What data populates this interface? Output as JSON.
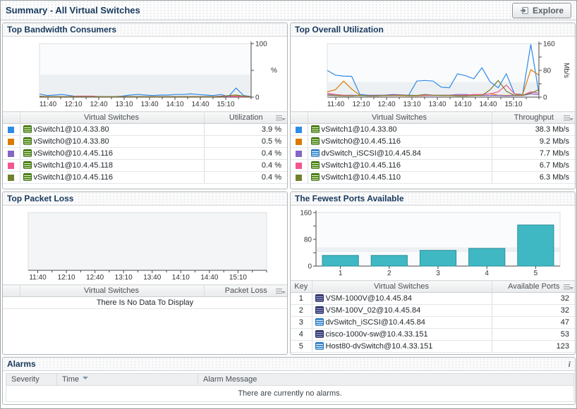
{
  "header": {
    "title": "Summary - All Virtual Switches",
    "explore_label": "Explore"
  },
  "panels": {
    "bandwidth": {
      "title": "Top Bandwidth Consumers",
      "columns": {
        "name": "Virtual Switches",
        "value": "Utilization"
      },
      "rows": [
        {
          "swatch": "#2E8BE6",
          "icon": "vswitch",
          "name": "vSwitch1@10.4.33.80",
          "value": "3.9 %"
        },
        {
          "swatch": "#DC7A00",
          "icon": "vswitch",
          "name": "vSwitch0@10.4.33.80",
          "value": "0.5 %"
        },
        {
          "swatch": "#8465C6",
          "icon": "vswitch",
          "name": "vSwitch0@10.4.45.116",
          "value": "0.4 %"
        },
        {
          "swatch": "#F4558F",
          "icon": "vswitch",
          "name": "vSwitch1@10.4.45.118",
          "value": "0.4 %"
        },
        {
          "swatch": "#72802D",
          "icon": "vswitch",
          "name": "vSwitch1@10.4.45.116",
          "value": "0.4 %"
        }
      ]
    },
    "utilization": {
      "title": "Top Overall Utilization",
      "columns": {
        "name": "Virtual Switches",
        "value": "Throughput"
      },
      "rows": [
        {
          "swatch": "#2E8BE6",
          "icon": "vswitch",
          "name": "vSwitch1@10.4.33.80",
          "value": "38.3 Mb/s"
        },
        {
          "swatch": "#DC7A00",
          "icon": "vswitch",
          "name": "vSwitch0@10.4.45.116",
          "value": "9.2 Mb/s"
        },
        {
          "swatch": "#8465C6",
          "icon": "dvswitch",
          "name": "dvSwitch_iSCSI@10.4.45.84",
          "value": "7.7 Mb/s"
        },
        {
          "swatch": "#F4558F",
          "icon": "vswitch",
          "name": "vSwitch1@10.4.45.116",
          "value": "6.7 Mb/s"
        },
        {
          "swatch": "#72802D",
          "icon": "vswitch",
          "name": "vSwitch1@10.4.45.110",
          "value": "6.3 Mb/s"
        }
      ]
    },
    "packetloss": {
      "title": "Top Packet Loss",
      "columns": {
        "name": "Virtual Switches",
        "value": "Packet Loss"
      },
      "empty_message": "There Is No Data To Display"
    },
    "ports": {
      "title": "The Fewest Ports Available",
      "columns": {
        "key": "Key",
        "name": "Virtual Switches",
        "value": "Available Ports"
      },
      "rows": [
        {
          "key": "1",
          "icon": "vsm",
          "name": "VSM-1000V@10.4.45.84",
          "value": "32"
        },
        {
          "key": "2",
          "icon": "vsm",
          "name": "VSM-100V_02@10.4.45.84",
          "value": "32"
        },
        {
          "key": "3",
          "icon": "dvswitch",
          "name": "dvSwitch_iSCSI@10.4.45.84",
          "value": "47"
        },
        {
          "key": "4",
          "icon": "vsm",
          "name": "cisco-1000v-sw@10.4.33.151",
          "value": "53"
        },
        {
          "key": "5",
          "icon": "dvswitch",
          "name": "Host80-dvSwitch@10.4.33.151",
          "value": "123"
        }
      ]
    }
  },
  "alarms": {
    "title": "Alarms",
    "info_glyph": "i",
    "columns": {
      "severity": "Severity",
      "time": "Time",
      "message": "Alarm Message"
    },
    "sort": "time-descending",
    "empty_message": "There are currently no alarms."
  },
  "chart_data": [
    {
      "name": "top-bandwidth-consumers",
      "type": "line",
      "unit": "%",
      "unit_rotated": false,
      "ylim": [
        0,
        100
      ],
      "yticks": [
        0,
        50,
        100
      ],
      "ytick_labels": [
        {
          "v": 0,
          "t": "0"
        },
        {
          "v": 100,
          "t": "100"
        }
      ],
      "axis_side": "right",
      "band": [
        0,
        42
      ],
      "x_labels": [
        "11:40",
        "12:10",
        "12:40",
        "13:10",
        "13:40",
        "14:10",
        "14:40",
        "15:10"
      ],
      "series": [
        {
          "name": "vSwitch1@10.4.33.80",
          "color": "#2E8BE6",
          "values": [
            6,
            3,
            4,
            5,
            3,
            1,
            1,
            1,
            1,
            1,
            1,
            2,
            4,
            5,
            4,
            3,
            4,
            4,
            5,
            5,
            6,
            5,
            4,
            3,
            5,
            1,
            17,
            3,
            1
          ]
        },
        {
          "name": "vSwitch0@10.4.33.80",
          "color": "#DC7A00",
          "values": [
            2,
            1,
            1,
            1,
            1,
            1,
            1,
            1,
            1,
            1,
            1,
            1,
            1,
            1,
            1,
            1,
            1,
            1,
            1,
            1,
            1,
            1,
            1,
            1,
            1,
            1,
            2,
            1,
            1
          ]
        },
        {
          "name": "vSwitch0@10.4.45.116",
          "color": "#8465C6",
          "values": [
            1,
            1,
            1,
            1,
            1,
            1,
            1,
            1,
            1,
            1,
            1,
            1,
            1,
            1,
            1,
            1,
            1,
            1,
            1,
            1,
            1,
            1,
            1,
            1,
            1,
            1,
            1,
            1,
            1
          ]
        },
        {
          "name": "vSwitch1@10.4.45.118",
          "color": "#F4558F",
          "values": [
            1,
            1,
            1,
            1,
            1,
            2,
            2,
            2,
            1,
            1,
            1,
            1,
            1,
            1,
            1,
            1,
            1,
            1,
            1,
            1,
            1,
            1,
            1,
            1,
            2,
            2,
            1,
            1,
            1
          ]
        },
        {
          "name": "vSwitch1@10.4.45.116",
          "color": "#72802D",
          "values": [
            1,
            1,
            1,
            1,
            1,
            1,
            1,
            1,
            1,
            1,
            1,
            1,
            1,
            1,
            1,
            1,
            1,
            1,
            1,
            1,
            1,
            1,
            1,
            1,
            1,
            3,
            4,
            2,
            1
          ]
        }
      ]
    },
    {
      "name": "top-overall-utilization",
      "type": "line",
      "unit": "Mb/s",
      "unit_rotated": true,
      "ylim": [
        0,
        160
      ],
      "yticks": [
        0,
        40,
        80,
        120,
        160
      ],
      "ytick_labels": [
        {
          "v": 0,
          "t": "0"
        },
        {
          "v": 80,
          "t": "80"
        },
        {
          "v": 160,
          "t": "160"
        }
      ],
      "axis_side": "right",
      "band": [
        0,
        45
      ],
      "x_labels": [
        "11:40",
        "12:10",
        "12:40",
        "13:10",
        "13:40",
        "14:10",
        "14:40",
        "15:10"
      ],
      "series": [
        {
          "name": "vSwitch1@10.4.33.80",
          "color": "#2E8BE6",
          "values": [
            80,
            66,
            63,
            62,
            8,
            6,
            5,
            5,
            6,
            5,
            6,
            48,
            50,
            48,
            30,
            28,
            70,
            64,
            55,
            88,
            46,
            28,
            70,
            10,
            8,
            158,
            12
          ]
        },
        {
          "name": "vSwitch0@10.4.45.116",
          "color": "#DC7A00",
          "values": [
            16,
            22,
            48,
            24,
            6,
            4,
            4,
            5,
            5,
            5,
            4,
            4,
            5,
            6,
            5,
            5,
            4,
            4,
            5,
            8,
            10,
            6,
            5,
            6,
            8,
            82,
            66
          ]
        },
        {
          "name": "dvSwitch_iSCSI@10.4.45.84",
          "color": "#8465C6",
          "values": [
            8,
            6,
            5,
            6,
            5,
            5,
            6,
            6,
            8,
            7,
            6,
            5,
            5,
            5,
            6,
            6,
            8,
            8,
            6,
            5,
            5,
            5,
            4,
            5,
            5,
            10,
            8
          ]
        },
        {
          "name": "vSwitch1@10.4.45.116",
          "color": "#F4558F",
          "values": [
            12,
            8,
            6,
            5,
            5,
            4,
            4,
            5,
            5,
            6,
            5,
            5,
            6,
            5,
            5,
            6,
            5,
            6,
            8,
            8,
            10,
            16,
            36,
            10,
            5,
            16,
            12
          ]
        },
        {
          "name": "vSwitch1@10.4.45.110",
          "color": "#72802D",
          "values": [
            6,
            5,
            4,
            4,
            5,
            4,
            4,
            5,
            6,
            6,
            5,
            5,
            8,
            6,
            5,
            5,
            4,
            4,
            5,
            5,
            22,
            50,
            18,
            5,
            6,
            12,
            22
          ]
        }
      ]
    },
    {
      "name": "top-packet-loss",
      "type": "line",
      "ylim": [
        0,
        1
      ],
      "axis_side": "none",
      "plot_bg": "#f3f5f6",
      "x_labels": [
        "11:40",
        "12:10",
        "12:40",
        "13:10",
        "13:40",
        "14:10",
        "14:40",
        "15:10"
      ],
      "series": []
    },
    {
      "name": "fewest-ports-available",
      "type": "bar",
      "categories": [
        "1",
        "2",
        "3",
        "4",
        "5"
      ],
      "values": [
        32,
        32,
        47,
        53,
        123
      ],
      "color": "#3FB8C4",
      "border": "#2E8F99",
      "ylim": [
        0,
        160
      ],
      "yticks": [
        0,
        40,
        80,
        120,
        160
      ],
      "ytick_labels": [
        {
          "v": 0,
          "t": "0"
        },
        {
          "v": 80,
          "t": "80"
        },
        {
          "v": 160,
          "t": "160"
        }
      ],
      "axis_side": "left",
      "band": [
        40,
        56
      ]
    }
  ]
}
